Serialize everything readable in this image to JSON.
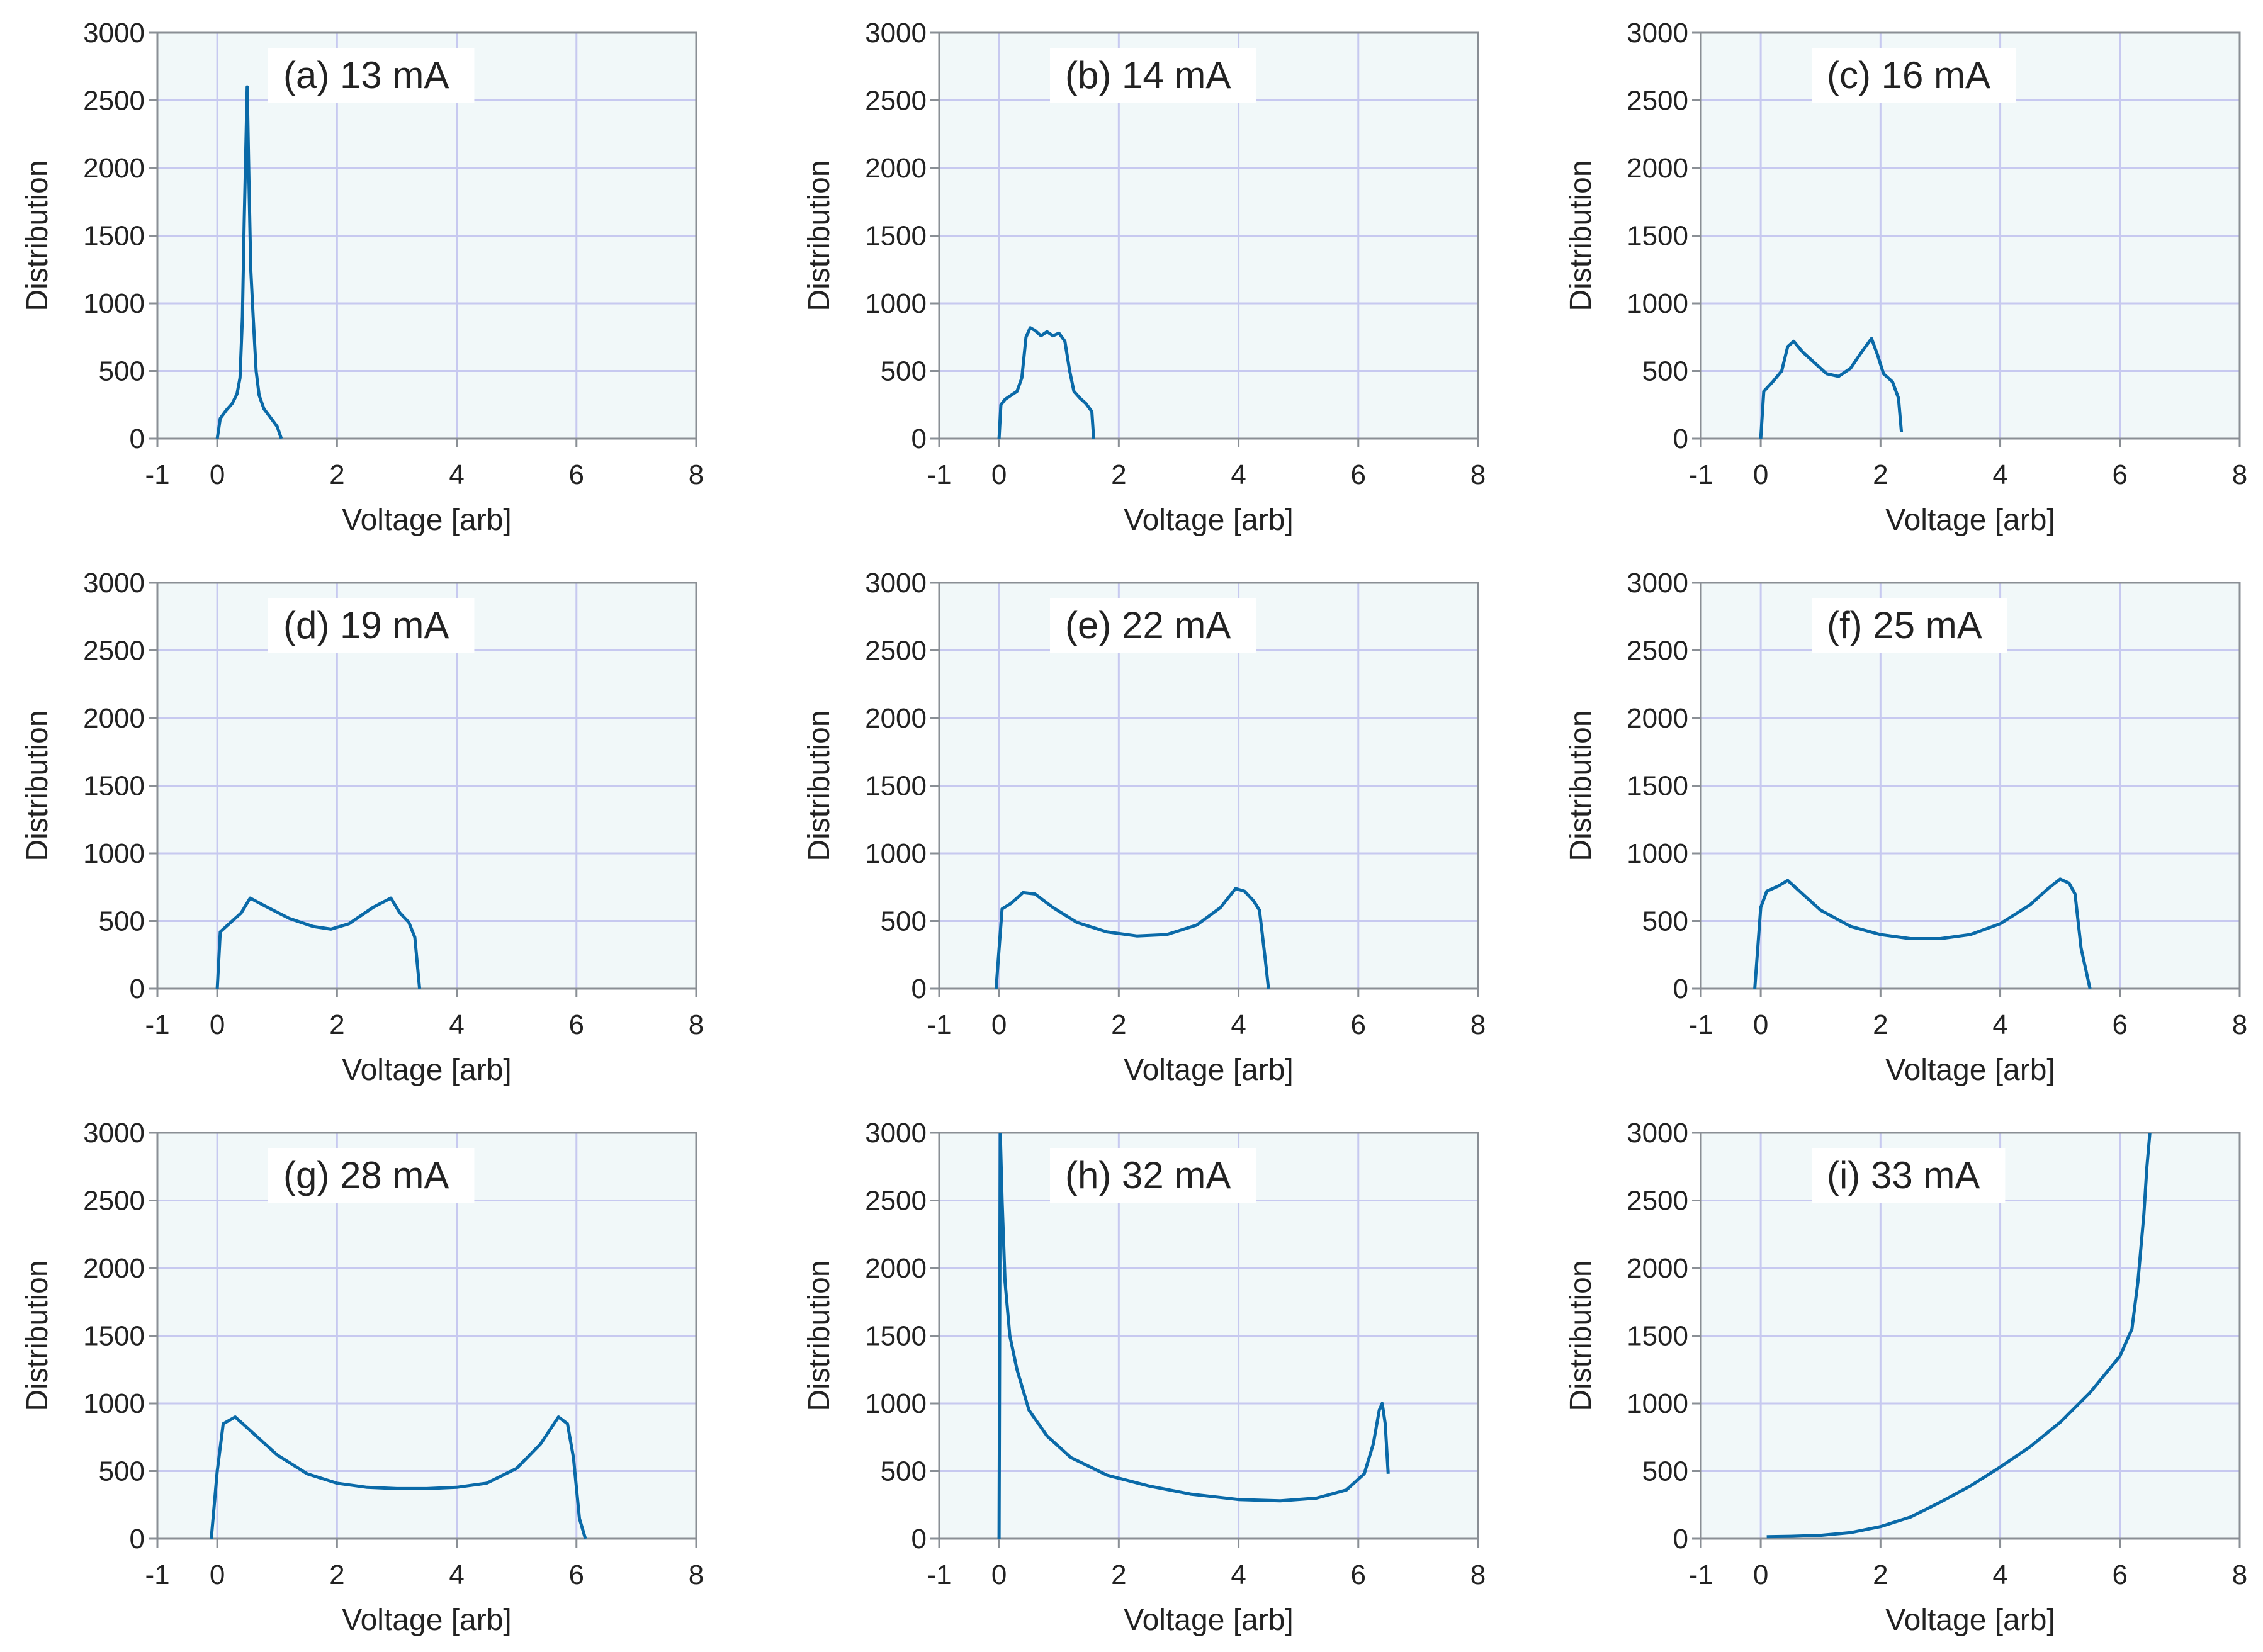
{
  "colors": {
    "plot_background": "#f1f8f9",
    "grid": "#c7c9f0",
    "axis": "#8a8f95",
    "line": "#0a6aa8",
    "text": "#222222"
  },
  "chart_data": [
    {
      "type": "line",
      "panel_label": "(a) 13 mA",
      "xlabel": "Voltage [arb]",
      "ylabel": "Distribution",
      "xlim": [
        -1,
        8
      ],
      "ylim": [
        0,
        3000
      ],
      "xticks": [
        "-1",
        "0",
        "2",
        "4",
        "6",
        "8"
      ],
      "yticks": [
        "0",
        "500",
        "1000",
        "1500",
        "2000",
        "2500",
        "3000"
      ],
      "grid": true,
      "x": [
        0,
        0.05,
        0.15,
        0.25,
        0.33,
        0.38,
        0.42,
        0.45,
        0.48,
        0.5,
        0.53,
        0.56,
        0.6,
        0.65,
        0.7,
        0.78,
        0.9,
        1.0,
        1.07
      ],
      "y": [
        0,
        150,
        210,
        260,
        330,
        450,
        900,
        1600,
        2200,
        2600,
        1900,
        1250,
        900,
        500,
        320,
        220,
        150,
        90,
        0
      ]
    },
    {
      "type": "line",
      "panel_label": "(b) 14 mA",
      "xlabel": "Voltage [arb]",
      "ylabel": "Distribution",
      "xlim": [
        -1,
        8
      ],
      "ylim": [
        0,
        3000
      ],
      "xticks": [
        "-1",
        "0",
        "2",
        "4",
        "6",
        "8"
      ],
      "yticks": [
        "0",
        "500",
        "1000",
        "1500",
        "2000",
        "2500",
        "3000"
      ],
      "grid": true,
      "x": [
        0,
        0.03,
        0.1,
        0.2,
        0.3,
        0.38,
        0.45,
        0.52,
        0.6,
        0.7,
        0.8,
        0.9,
        1.0,
        1.1,
        1.18,
        1.25,
        1.35,
        1.45,
        1.55,
        1.58
      ],
      "y": [
        0,
        250,
        290,
        320,
        350,
        450,
        750,
        820,
        800,
        760,
        790,
        760,
        780,
        720,
        500,
        350,
        300,
        260,
        200,
        0
      ]
    },
    {
      "type": "line",
      "panel_label": "(c) 16 mA",
      "xlabel": "Voltage [arb]",
      "ylabel": "Distribution",
      "xlim": [
        -1,
        8
      ],
      "ylim": [
        0,
        3000
      ],
      "xticks": [
        "-1",
        "0",
        "2",
        "4",
        "6",
        "8"
      ],
      "yticks": [
        "0",
        "500",
        "1000",
        "1500",
        "2000",
        "2500",
        "3000"
      ],
      "grid": true,
      "x": [
        0,
        0.05,
        0.2,
        0.35,
        0.45,
        0.55,
        0.7,
        0.9,
        1.1,
        1.3,
        1.5,
        1.7,
        1.85,
        1.95,
        2.05,
        2.2,
        2.3,
        2.35
      ],
      "y": [
        0,
        350,
        420,
        500,
        680,
        720,
        640,
        560,
        480,
        460,
        520,
        650,
        740,
        620,
        480,
        420,
        300,
        50
      ]
    },
    {
      "type": "line",
      "panel_label": "(d) 19 mA",
      "xlabel": "Voltage [arb]",
      "ylabel": "Distribution",
      "xlim": [
        -1,
        8
      ],
      "ylim": [
        0,
        3000
      ],
      "xticks": [
        "-1",
        "0",
        "2",
        "4",
        "6",
        "8"
      ],
      "yticks": [
        "0",
        "500",
        "1000",
        "1500",
        "2000",
        "2500",
        "3000"
      ],
      "grid": true,
      "x": [
        0,
        0.05,
        0.2,
        0.4,
        0.55,
        0.8,
        1.2,
        1.6,
        1.9,
        2.2,
        2.6,
        2.9,
        3.05,
        3.2,
        3.3,
        3.38
      ],
      "y": [
        0,
        420,
        480,
        560,
        670,
        610,
        520,
        460,
        440,
        480,
        600,
        670,
        560,
        490,
        380,
        0
      ]
    },
    {
      "type": "line",
      "panel_label": "(e) 22 mA",
      "xlabel": "Voltage [arb]",
      "ylabel": "Distribution",
      "xlim": [
        -1,
        8
      ],
      "ylim": [
        0,
        3000
      ],
      "xticks": [
        "-1",
        "0",
        "2",
        "4",
        "6",
        "8"
      ],
      "yticks": [
        "0",
        "500",
        "1000",
        "1500",
        "2000",
        "2500",
        "3000"
      ],
      "grid": true,
      "x": [
        -0.05,
        0.05,
        0.2,
        0.4,
        0.6,
        0.9,
        1.3,
        1.8,
        2.3,
        2.8,
        3.3,
        3.7,
        3.95,
        4.1,
        4.25,
        4.35,
        4.45,
        4.5
      ],
      "y": [
        0,
        590,
        630,
        710,
        700,
        600,
        490,
        420,
        390,
        400,
        470,
        600,
        740,
        720,
        650,
        580,
        200,
        0
      ]
    },
    {
      "type": "line",
      "panel_label": "(f) 25 mA",
      "xlabel": "Voltage [arb]",
      "ylabel": "Distribution",
      "xlim": [
        -1,
        8
      ],
      "ylim": [
        0,
        3000
      ],
      "xticks": [
        "-1",
        "0",
        "2",
        "4",
        "6",
        "8"
      ],
      "yticks": [
        "0",
        "500",
        "1000",
        "1500",
        "2000",
        "2500",
        "3000"
      ],
      "grid": true,
      "x": [
        -0.1,
        0,
        0.1,
        0.3,
        0.45,
        0.7,
        1.0,
        1.5,
        2.0,
        2.5,
        3.0,
        3.5,
        4.0,
        4.5,
        4.8,
        5.0,
        5.15,
        5.25,
        5.35,
        5.5
      ],
      "y": [
        0,
        600,
        720,
        760,
        800,
        700,
        580,
        460,
        400,
        370,
        370,
        400,
        480,
        620,
        740,
        810,
        780,
        700,
        300,
        0
      ]
    },
    {
      "type": "line",
      "panel_label": "(g)  28 mA",
      "xlabel": "Voltage [arb]",
      "ylabel": "Distribution",
      "xlim": [
        -1,
        8
      ],
      "ylim": [
        0,
        3000
      ],
      "xticks": [
        "-1",
        "0",
        "2",
        "4",
        "6",
        "8"
      ],
      "yticks": [
        "0",
        "500",
        "1000",
        "1500",
        "2000",
        "2500",
        "3000"
      ],
      "grid": true,
      "x": [
        -0.1,
        0,
        0.1,
        0.3,
        0.6,
        1.0,
        1.5,
        2.0,
        2.5,
        3.0,
        3.5,
        4.0,
        4.5,
        5.0,
        5.4,
        5.7,
        5.85,
        5.95,
        6.05,
        6.15
      ],
      "y": [
        0,
        500,
        850,
        900,
        780,
        620,
        480,
        410,
        380,
        370,
        370,
        380,
        410,
        520,
        700,
        900,
        850,
        600,
        150,
        0
      ]
    },
    {
      "type": "line",
      "panel_label": "(h) 32 mA",
      "xlabel": "Voltage [arb]",
      "ylabel": "Distribution",
      "xlim": [
        -1,
        8
      ],
      "ylim": [
        0,
        3000
      ],
      "xticks": [
        "-1",
        "0",
        "2",
        "4",
        "6",
        "8"
      ],
      "yticks": [
        "0",
        "500",
        "1000",
        "1500",
        "2000",
        "2500",
        "3000"
      ],
      "grid": true,
      "x": [
        0,
        0.02,
        0.05,
        0.1,
        0.18,
        0.3,
        0.5,
        0.8,
        1.2,
        1.8,
        2.5,
        3.2,
        4.0,
        4.7,
        5.3,
        5.8,
        6.1,
        6.25,
        6.35,
        6.4,
        6.45,
        6.5
      ],
      "y": [
        0,
        3000,
        2500,
        1900,
        1500,
        1250,
        950,
        760,
        600,
        470,
        390,
        330,
        290,
        280,
        300,
        360,
        480,
        700,
        950,
        1000,
        850,
        480
      ]
    },
    {
      "type": "line",
      "panel_label": "(i) 33 mA",
      "xlabel": "Voltage [arb]",
      "ylabel": "Distribution",
      "xlim": [
        -1,
        8
      ],
      "ylim": [
        0,
        3000
      ],
      "xticks": [
        "-1",
        "0",
        "2",
        "4",
        "6",
        "8"
      ],
      "yticks": [
        "0",
        "500",
        "1000",
        "1500",
        "2000",
        "2500",
        "3000"
      ],
      "grid": true,
      "x": [
        0.1,
        0.5,
        1.0,
        1.5,
        2.0,
        2.5,
        3.0,
        3.5,
        4.0,
        4.5,
        5.0,
        5.5,
        6.0,
        6.2,
        6.3,
        6.4,
        6.45,
        6.5
      ],
      "y": [
        15,
        18,
        25,
        45,
        90,
        160,
        270,
        390,
        530,
        680,
        860,
        1080,
        1350,
        1550,
        1900,
        2400,
        2750,
        3000
      ]
    }
  ]
}
